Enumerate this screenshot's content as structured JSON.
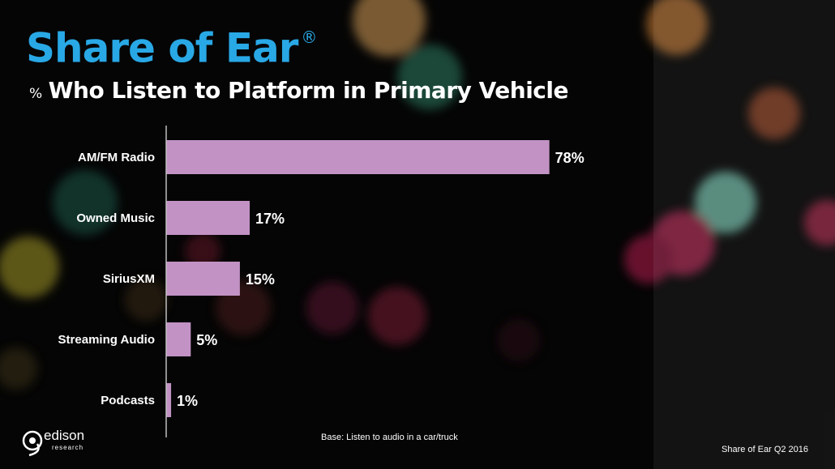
{
  "slide": {
    "title": "Share of Ear",
    "title_mark": "®",
    "subtitle_prefix": "%",
    "subtitle": "Who Listen to Platform in Primary Vehicle",
    "base_note": "Base: Listen to audio in a car/truck",
    "source_note": "Share of Ear Q2 2016"
  },
  "brand": {
    "name": "edison",
    "tagline": "research",
    "logo_icon": "edison-logo-icon"
  },
  "colors": {
    "title": "#29a8e6",
    "bar": "#c292c5",
    "text": "#ffffff",
    "axis": "#bfbfbf"
  },
  "chart_data": {
    "type": "bar",
    "orientation": "horizontal",
    "title": "% Who Listen to Platform in Primary Vehicle",
    "categories": [
      "AM/FM Radio",
      "Owned Music",
      "SiriusXM",
      "Streaming Audio",
      "Podcasts"
    ],
    "values": [
      78,
      17,
      15,
      5,
      1
    ],
    "data_labels": [
      "78%",
      "17%",
      "15%",
      "5%",
      "1%"
    ],
    "unit": "%",
    "xlim": [
      0,
      100
    ],
    "grid": false,
    "legend": "none"
  }
}
